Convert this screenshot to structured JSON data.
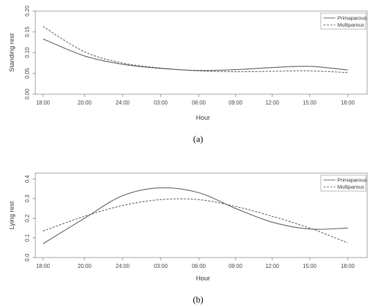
{
  "chart_data": [
    {
      "type": "line",
      "caption": "(a)",
      "xlabel": "Hour",
      "ylabel": "Standing rest",
      "x_ticks": [
        "18:00",
        "20:00",
        "24:00",
        "03:00",
        "06:00",
        "09:00",
        "12:00",
        "15:00",
        "18:00"
      ],
      "y_ticks": [
        "0.00",
        "0.05",
        "0.10",
        "0.15",
        "0.20"
      ],
      "ylim": [
        0,
        0.2
      ],
      "legend_position": "top-right",
      "series": [
        {
          "name": "Primaparous",
          "style": "solid",
          "values": [
            0.133,
            0.092,
            0.072,
            0.062,
            0.057,
            0.059,
            0.064,
            0.067,
            0.058
          ]
        },
        {
          "name": "Multiparous",
          "style": "dashed",
          "values": [
            0.163,
            0.102,
            0.075,
            0.063,
            0.056,
            0.054,
            0.055,
            0.056,
            0.052
          ]
        }
      ]
    },
    {
      "type": "line",
      "caption": "(b)",
      "xlabel": "Hour",
      "ylabel": "Lying rest",
      "x_ticks": [
        "18:00",
        "20:00",
        "24:00",
        "03:00",
        "06:00",
        "09:00",
        "12:00",
        "15:00",
        "18:00"
      ],
      "y_ticks": [
        "0.0",
        "0.1",
        "0.2",
        "0.3",
        "0.4"
      ],
      "ylim": [
        0,
        0.43
      ],
      "legend_position": "top-right",
      "series": [
        {
          "name": "Primaparous",
          "style": "solid",
          "values": [
            0.07,
            0.2,
            0.315,
            0.355,
            0.33,
            0.25,
            0.18,
            0.145,
            0.15
          ]
        },
        {
          "name": "Multiparous",
          "style": "dashed",
          "values": [
            0.135,
            0.21,
            0.265,
            0.295,
            0.295,
            0.26,
            0.21,
            0.15,
            0.075
          ]
        }
      ]
    }
  ]
}
